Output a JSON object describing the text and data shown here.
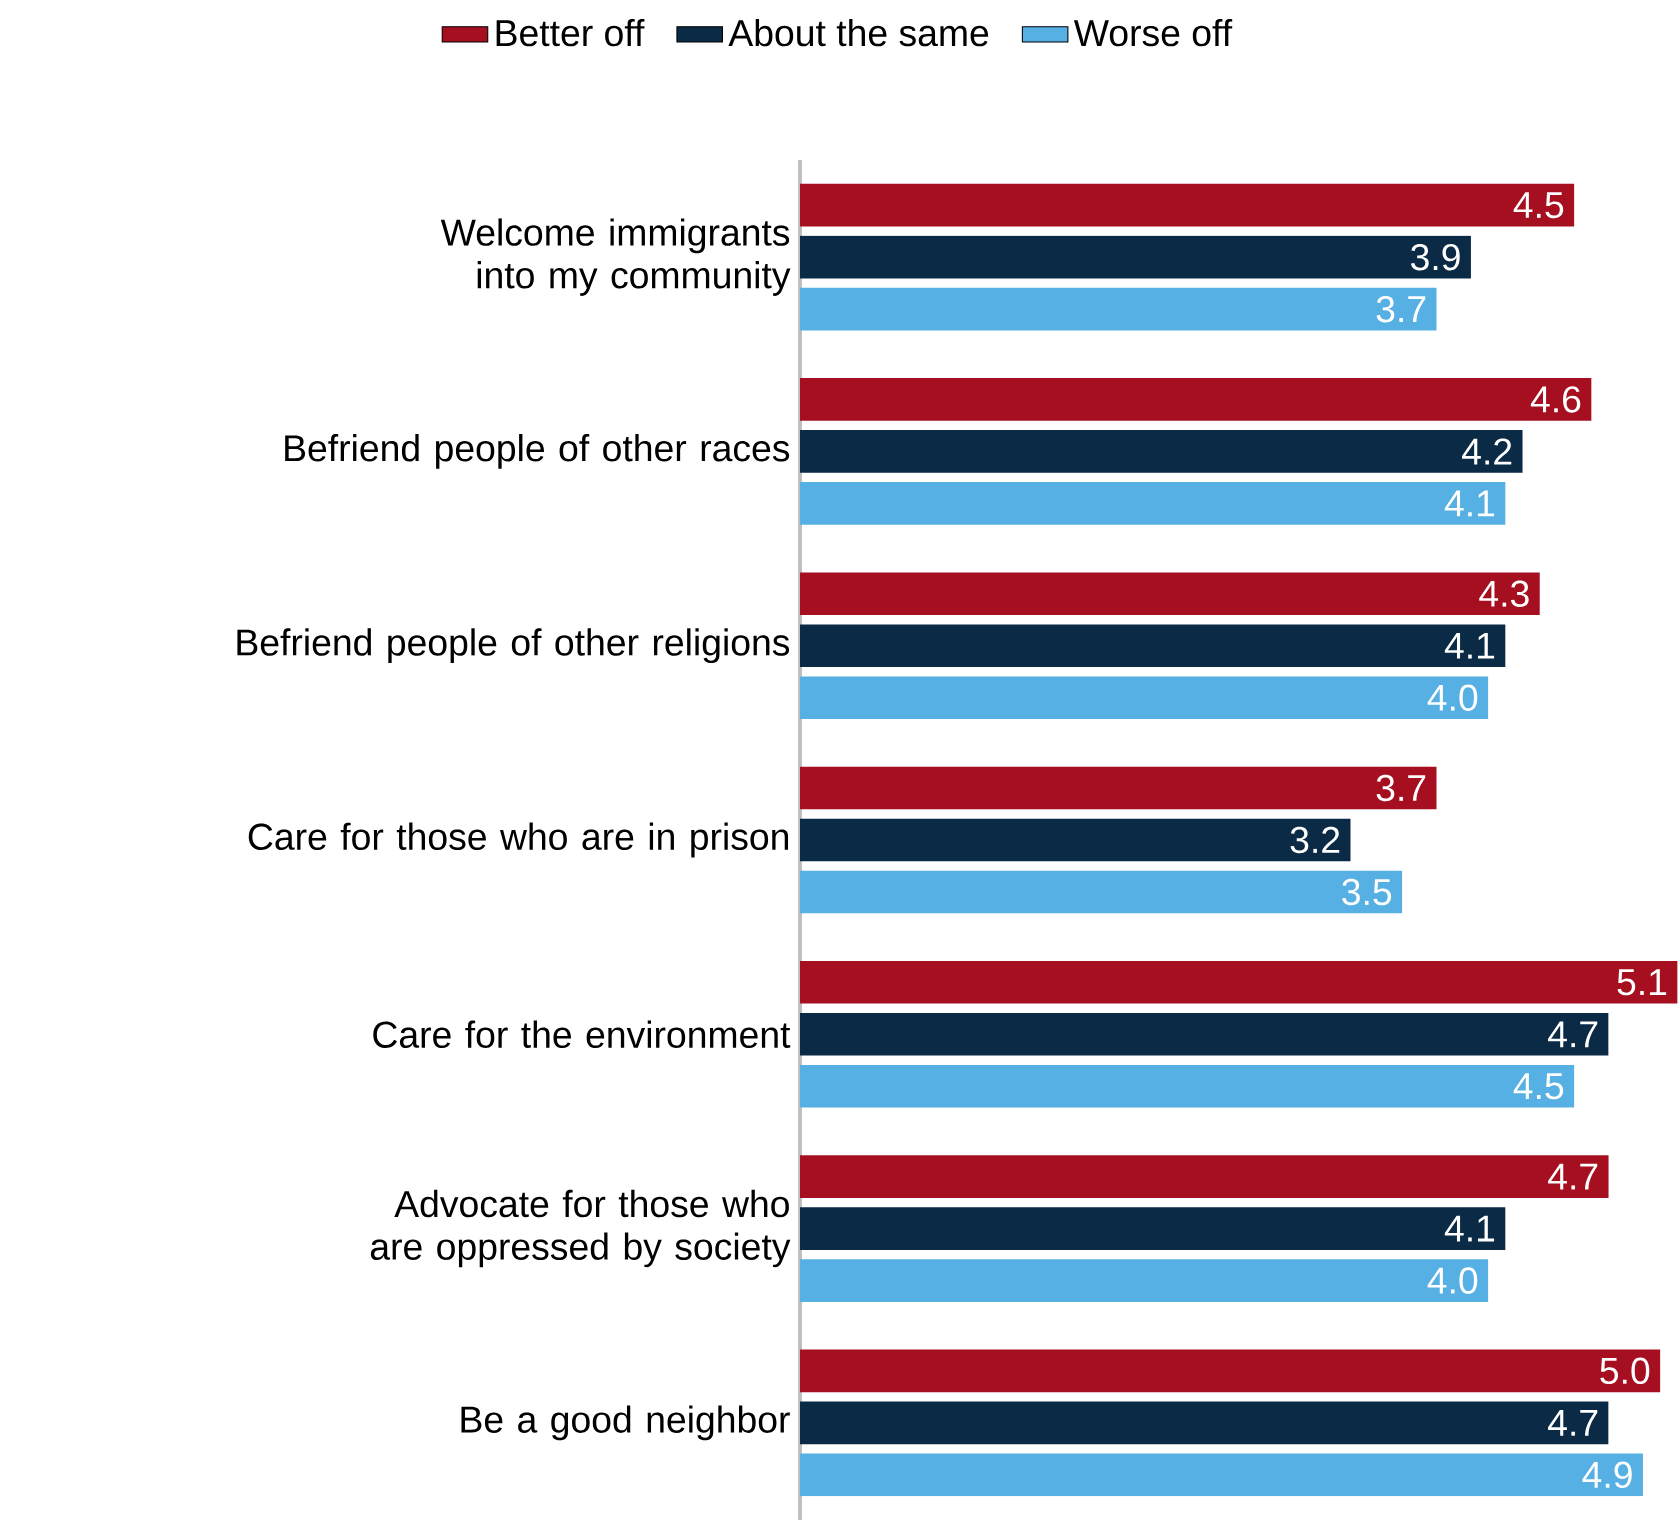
{
  "chart_data": {
    "type": "bar",
    "orientation": "horizontal",
    "legend": "top",
    "categories": [
      "Welcome immigrants into my community",
      "Befriend people of other races",
      "Befriend people of other religions",
      "Care for those who are in prison",
      "Care for the environment",
      "Advocate for those who are oppressed by society",
      "Be a good neighbor"
    ],
    "series": [
      {
        "name": "Better off",
        "color": "#a50f1f",
        "values": [
          4.5,
          4.6,
          4.3,
          3.7,
          5.1,
          4.7,
          5.0
        ],
        "value_labels": [
          "4.5",
          "4.6",
          "4.3",
          "3.7",
          "5.1",
          "4.7",
          "5.0"
        ]
      },
      {
        "name": "About the same",
        "color": "#0b2a45",
        "values": [
          3.9,
          4.2,
          4.1,
          3.2,
          4.7,
          4.1,
          4.7
        ],
        "value_labels": [
          "3.9",
          "4.2",
          "4.1",
          "3.2",
          "4.7",
          "4.1",
          "4.7"
        ]
      },
      {
        "name": "Worse off",
        "color": "#56b0e3",
        "values": [
          3.7,
          4.1,
          4.0,
          3.5,
          4.5,
          4.0,
          4.9
        ],
        "value_labels": [
          "3.7",
          "4.1",
          "4.0",
          "3.5",
          "4.5",
          "4.0",
          "4.9"
        ]
      }
    ]
  }
}
